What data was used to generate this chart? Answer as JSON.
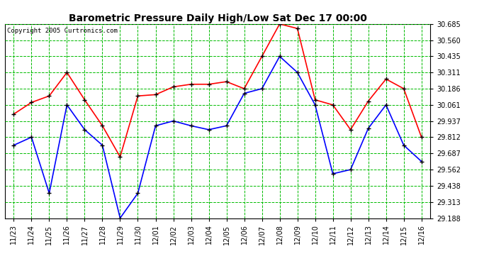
{
  "title": "Barometric Pressure Daily High/Low Sat Dec 17 00:00",
  "copyright": "Copyright 2005 Curtronics.com",
  "labels": [
    "11/23",
    "11/24",
    "11/25",
    "11/26",
    "11/27",
    "11/28",
    "11/29",
    "11/30",
    "12/01",
    "12/02",
    "12/03",
    "12/04",
    "12/05",
    "12/06",
    "12/07",
    "12/08",
    "12/09",
    "12/10",
    "12/11",
    "12/12",
    "12/13",
    "12/14",
    "12/15",
    "12/16"
  ],
  "high": [
    29.99,
    30.08,
    30.13,
    30.311,
    30.1,
    29.9,
    29.66,
    30.13,
    30.14,
    30.2,
    30.22,
    30.22,
    30.24,
    30.186,
    30.435,
    30.685,
    30.65,
    30.1,
    30.061,
    29.87,
    30.09,
    30.26,
    30.186,
    29.812
  ],
  "low": [
    29.75,
    29.812,
    29.38,
    30.061,
    29.87,
    29.75,
    29.188,
    29.38,
    29.9,
    29.937,
    29.9,
    29.87,
    29.9,
    30.15,
    30.186,
    30.435,
    30.311,
    30.061,
    29.53,
    29.562,
    29.88,
    30.061,
    29.75,
    29.625
  ],
  "high_color": "#ff0000",
  "low_color": "#0000ff",
  "marker_color": "#000000",
  "bg_color": "#ffffff",
  "grid_color": "#00bb00",
  "title_color": "#000000",
  "ymin": 29.188,
  "ymax": 30.685,
  "yticks": [
    29.188,
    29.313,
    29.438,
    29.562,
    29.687,
    29.812,
    29.937,
    30.061,
    30.186,
    30.311,
    30.435,
    30.56,
    30.685
  ],
  "title_fontsize": 10,
  "tick_fontsize": 7,
  "copyright_fontsize": 6.5,
  "linewidth": 1.2,
  "markersize": 4
}
